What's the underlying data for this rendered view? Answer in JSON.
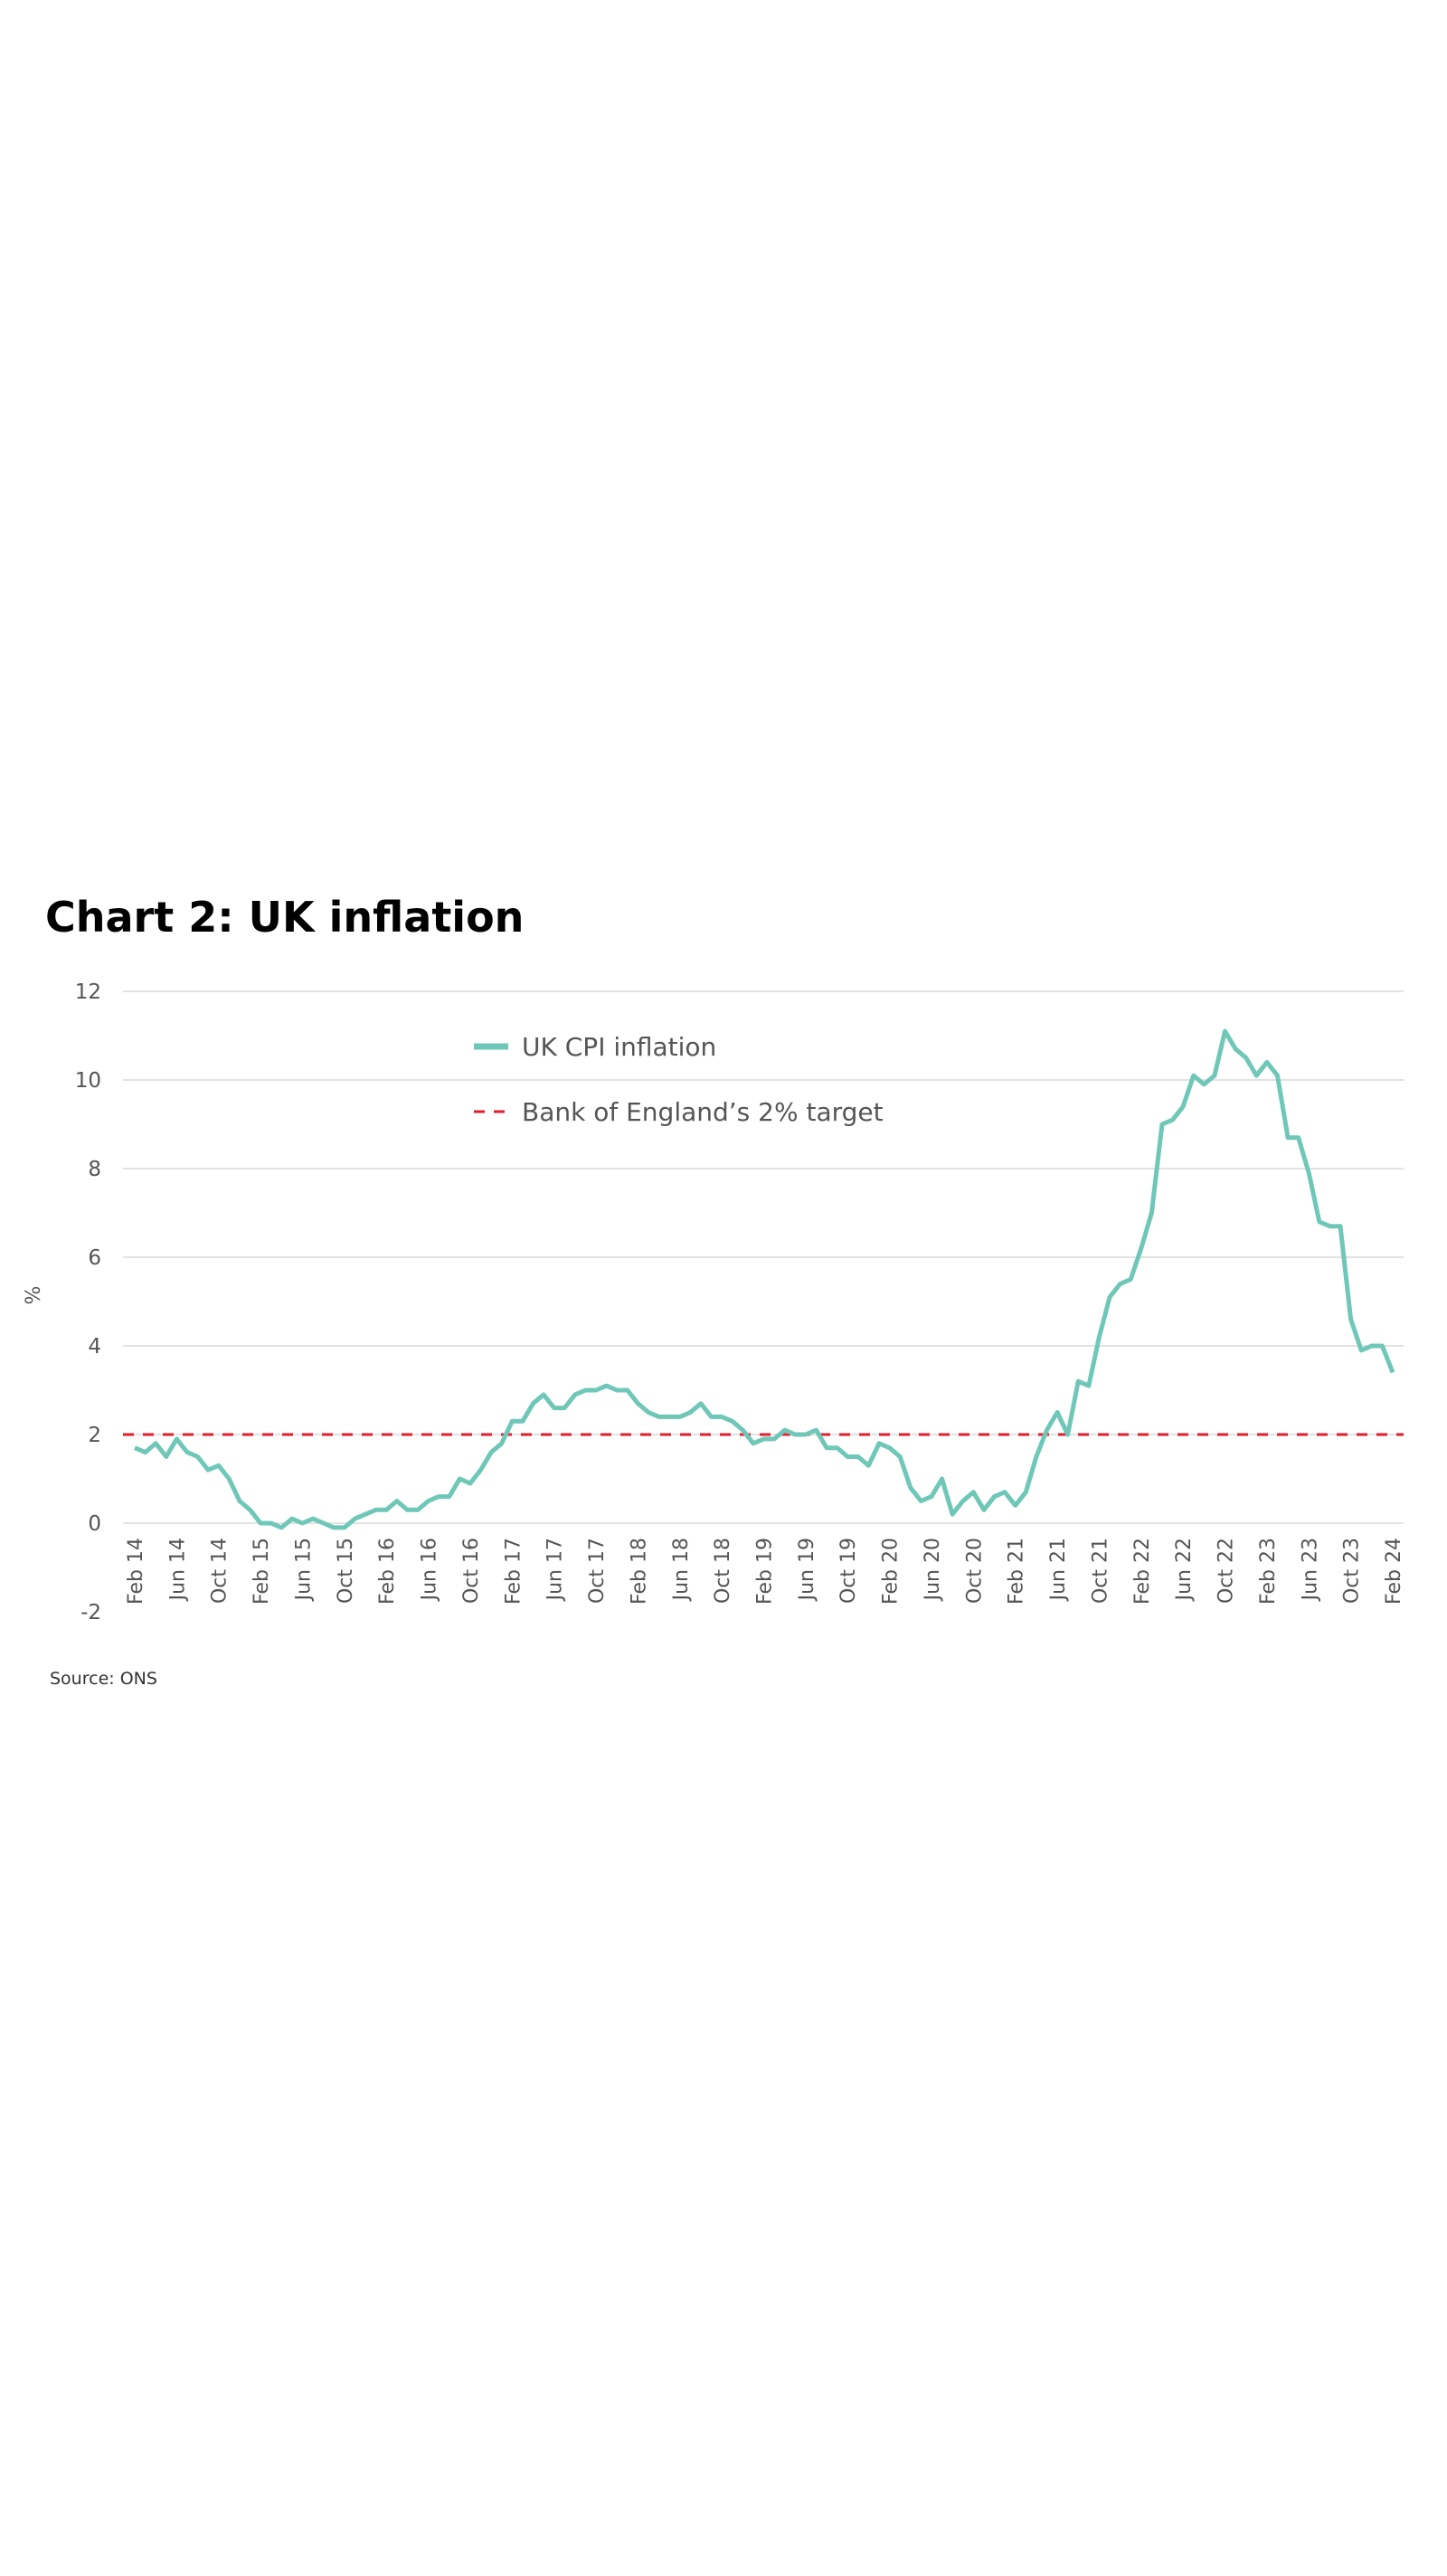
{
  "chart_data": {
    "type": "line",
    "title": "Chart 2: UK inflation",
    "y_label": "%",
    "source": "Source: ONS",
    "categories": [
      "Feb 14",
      null,
      null,
      null,
      "Jun 14",
      null,
      null,
      null,
      "Oct 14",
      null,
      null,
      null,
      "Feb 15",
      null,
      null,
      null,
      "Jun 15",
      null,
      null,
      null,
      "Oct 15",
      null,
      null,
      null,
      "Feb 16",
      null,
      null,
      null,
      "Jun 16",
      null,
      null,
      null,
      "Oct 16",
      null,
      null,
      null,
      "Feb 17",
      null,
      null,
      null,
      "Jun 17",
      null,
      null,
      null,
      "Oct 17",
      null,
      null,
      null,
      "Feb 18",
      null,
      null,
      null,
      "Jun 18",
      null,
      null,
      null,
      "Oct 18",
      null,
      null,
      null,
      "Feb 19",
      null,
      null,
      null,
      "Jun 19",
      null,
      null,
      null,
      "Oct 19",
      null,
      null,
      null,
      "Feb 20",
      null,
      null,
      null,
      "Jun 20",
      null,
      null,
      null,
      "Oct 20",
      null,
      null,
      null,
      "Feb 21",
      null,
      null,
      null,
      "Jun 21",
      null,
      null,
      null,
      "Oct 21",
      null,
      null,
      null,
      "Feb 22",
      null,
      null,
      null,
      "Jun 22",
      null,
      null,
      null,
      "Oct 22",
      null,
      null,
      null,
      "Feb 23",
      null,
      null,
      null,
      "Jun 23",
      null,
      null,
      null,
      "Oct 23",
      null,
      null,
      null,
      "Feb 24"
    ],
    "series": [
      {
        "name": "UK CPI inflation",
        "color": "#6fc7b8",
        "values": [
          1.7,
          1.6,
          1.8,
          1.5,
          1.9,
          1.6,
          1.5,
          1.2,
          1.3,
          1.0,
          0.5,
          0.3,
          0.0,
          0.0,
          -0.1,
          0.1,
          0.0,
          0.1,
          0.0,
          -0.1,
          -0.1,
          0.1,
          0.2,
          0.3,
          0.3,
          0.5,
          0.3,
          0.3,
          0.5,
          0.6,
          0.6,
          1.0,
          0.9,
          1.2,
          1.6,
          1.8,
          2.3,
          2.3,
          2.7,
          2.9,
          2.6,
          2.6,
          2.9,
          3.0,
          3.0,
          3.1,
          3.0,
          3.0,
          2.7,
          2.5,
          2.4,
          2.4,
          2.4,
          2.5,
          2.7,
          2.4,
          2.4,
          2.3,
          2.1,
          1.8,
          1.9,
          1.9,
          2.1,
          2.0,
          2.0,
          2.1,
          1.7,
          1.7,
          1.5,
          1.5,
          1.3,
          1.8,
          1.7,
          1.5,
          0.8,
          0.5,
          0.6,
          1.0,
          0.2,
          0.5,
          0.7,
          0.3,
          0.6,
          0.7,
          0.4,
          0.7,
          1.5,
          2.1,
          2.5,
          2.0,
          3.2,
          3.1,
          4.2,
          5.1,
          5.4,
          5.5,
          6.2,
          7.0,
          9.0,
          9.1,
          9.4,
          10.1,
          9.9,
          10.1,
          11.1,
          10.7,
          10.5,
          10.1,
          10.4,
          10.1,
          8.7,
          8.7,
          7.9,
          6.8,
          6.7,
          6.7,
          4.6,
          3.9,
          4.0,
          4.0,
          3.4
        ]
      }
    ],
    "reference_line": {
      "name": "Bank of England’s 2% target",
      "value": 2,
      "color": "#e31d2b",
      "style": "dashed"
    },
    "ylim": [
      -2,
      12
    ],
    "yticks": [
      -2,
      0,
      2,
      4,
      6,
      8,
      10,
      12
    ],
    "grid": true
  }
}
